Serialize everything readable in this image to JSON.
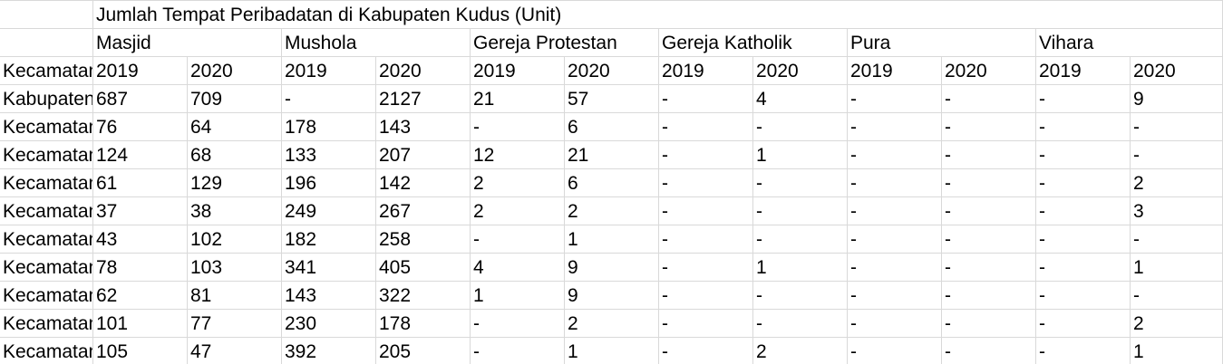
{
  "title": "Jumlah Tempat Peribadatan di Kabupaten Kudus (Unit)",
  "row_header_label": "Kecamatan",
  "groups": [
    "Masjid",
    "Mushola",
    "Gereja Protestan",
    "Gereja Katholik",
    "Pura",
    "Vihara"
  ],
  "years": [
    "2019",
    "2020",
    "2019",
    "2020",
    "2019",
    "2020",
    "2019",
    "2020",
    "2019",
    "2020",
    "2019",
    "2020"
  ],
  "rows": [
    {
      "label": "Kabupaten",
      "values": [
        "687",
        "709",
        "-",
        "2127",
        "21",
        "57",
        "-",
        "4",
        "-",
        "-",
        "-",
        "9"
      ]
    },
    {
      "label": "Kecamatan",
      "values": [
        "76",
        "64",
        "178",
        "143",
        "-",
        "6",
        "-",
        "-",
        "-",
        "-",
        "-",
        "-"
      ]
    },
    {
      "label": "Kecamatan",
      "values": [
        "124",
        "68",
        "133",
        "207",
        "12",
        "21",
        "-",
        "1",
        "-",
        "-",
        "-",
        "-"
      ]
    },
    {
      "label": "Kecamatan",
      "values": [
        "61",
        "129",
        "196",
        "142",
        "2",
        "6",
        "-",
        "-",
        "-",
        "-",
        "-",
        "2"
      ]
    },
    {
      "label": "Kecamatan",
      "values": [
        "37",
        "38",
        "249",
        "267",
        "2",
        "2",
        "-",
        "-",
        "-",
        "-",
        "-",
        "3"
      ]
    },
    {
      "label": "Kecamatan",
      "values": [
        "43",
        "102",
        "182",
        "258",
        "-",
        "1",
        "-",
        "-",
        "-",
        "-",
        "-",
        "-"
      ]
    },
    {
      "label": "Kecamatan",
      "values": [
        "78",
        "103",
        "341",
        "405",
        "4",
        "9",
        "-",
        "1",
        "-",
        "-",
        "-",
        "1"
      ]
    },
    {
      "label": "Kecamatan",
      "values": [
        "62",
        "81",
        "143",
        "322",
        "1",
        "9",
        "-",
        "-",
        "-",
        "-",
        "-",
        "-"
      ]
    },
    {
      "label": "Kecamatan",
      "values": [
        "101",
        "77",
        "230",
        "178",
        "-",
        "2",
        "-",
        "-",
        "-",
        "-",
        "-",
        "2"
      ]
    },
    {
      "label": "Kecamatan",
      "values": [
        "105",
        "47",
        "392",
        "205",
        "-",
        "1",
        "-",
        "2",
        "-",
        "-",
        "-",
        "1"
      ]
    }
  ]
}
